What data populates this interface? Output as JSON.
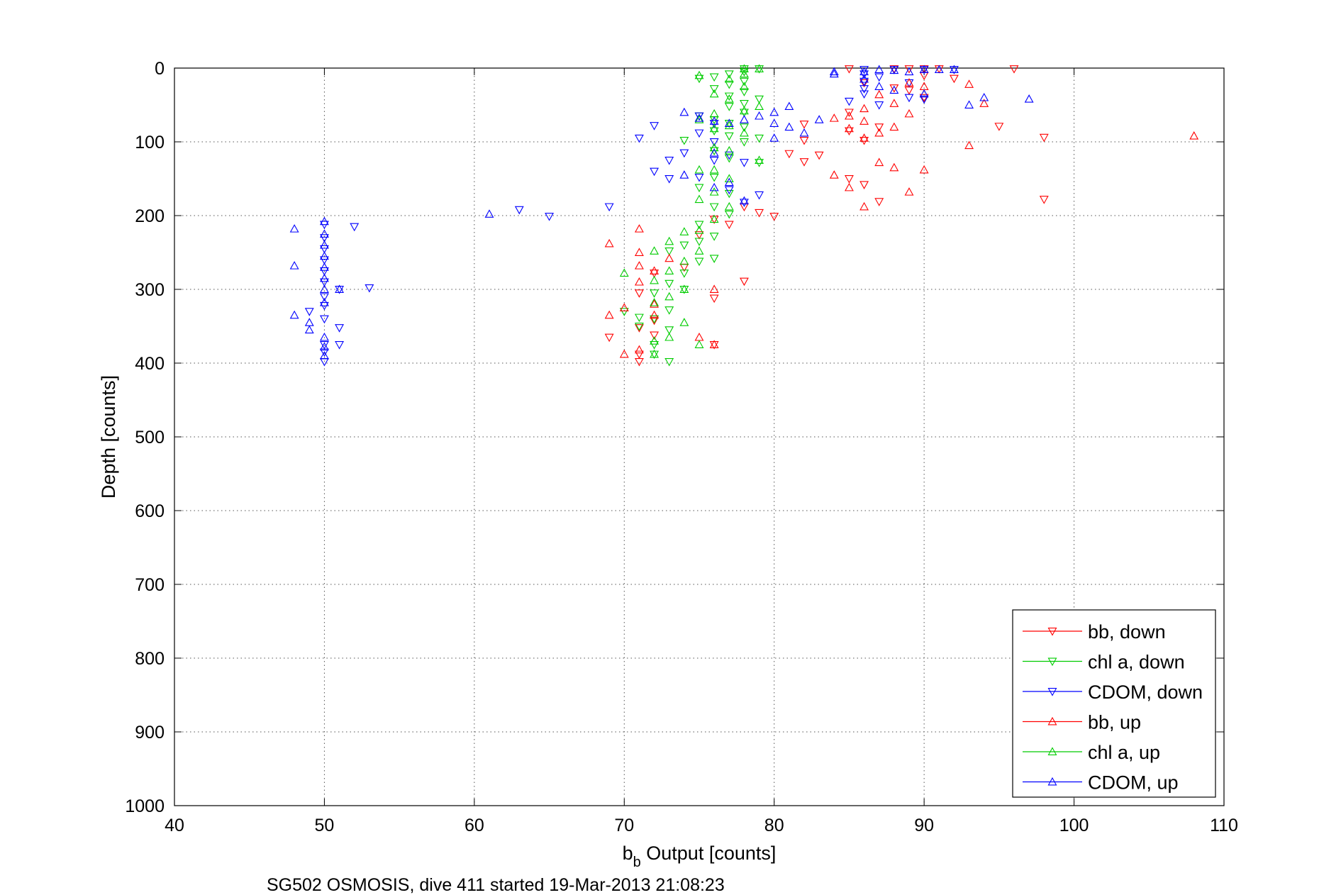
{
  "chart_data": {
    "type": "scatter",
    "xlabel_main": "b",
    "xlabel_sub": "b",
    "xlabel_rest": " Output [counts]",
    "ylabel": "Depth [counts]",
    "caption": "SG502 OSMOSIS, dive 411 started 19-Mar-2013 21:08:23",
    "xlim": [
      40,
      110
    ],
    "ylim": [
      0,
      1000
    ],
    "y_reversed": true,
    "grid": true,
    "grid_style": "dotted",
    "legend_position": "bottom-right",
    "x_ticks": [
      "40",
      "50",
      "60",
      "70",
      "80",
      "90",
      "100",
      "110"
    ],
    "y_ticks": [
      "0",
      "100",
      "200",
      "300",
      "400",
      "500",
      "600",
      "700",
      "800",
      "900",
      "1000"
    ],
    "series": [
      {
        "name": "bb, down",
        "color": "#ff0000",
        "marker": "triangle-down",
        "points": [
          [
            85,
            1
          ],
          [
            88,
            1
          ],
          [
            89,
            1
          ],
          [
            90,
            1
          ],
          [
            91,
            1
          ],
          [
            96,
            1
          ],
          [
            90,
            10
          ],
          [
            92,
            14
          ],
          [
            86,
            20
          ],
          [
            88,
            27
          ],
          [
            89,
            30
          ],
          [
            90,
            40
          ],
          [
            85,
            60
          ],
          [
            82,
            76
          ],
          [
            87,
            80
          ],
          [
            85,
            85
          ],
          [
            86,
            98
          ],
          [
            95,
            79
          ],
          [
            98,
            94
          ],
          [
            82,
            98
          ],
          [
            83,
            118
          ],
          [
            81,
            116
          ],
          [
            82,
            127
          ],
          [
            85,
            150
          ],
          [
            86,
            158
          ],
          [
            87,
            181
          ],
          [
            98,
            178
          ],
          [
            79,
            196
          ],
          [
            80,
            201
          ],
          [
            78,
            188
          ],
          [
            77,
            212
          ],
          [
            76,
            205
          ],
          [
            75,
            226
          ],
          [
            74,
            270
          ],
          [
            78,
            289
          ],
          [
            76,
            312
          ],
          [
            76,
            375
          ],
          [
            72,
            278
          ],
          [
            71,
            305
          ],
          [
            71,
            352
          ],
          [
            69,
            365
          ],
          [
            71,
            388
          ],
          [
            71,
            398
          ],
          [
            72,
            342
          ],
          [
            72,
            362
          ]
        ]
      },
      {
        "name": "chl a, down",
        "color": "#00cc00",
        "marker": "triangle-down",
        "points": [
          [
            78,
            1
          ],
          [
            79,
            1
          ],
          [
            78,
            5
          ],
          [
            77,
            8
          ],
          [
            76,
            12
          ],
          [
            75,
            14
          ],
          [
            78,
            18
          ],
          [
            77,
            22
          ],
          [
            76,
            28
          ],
          [
            78,
            32
          ],
          [
            77,
            38
          ],
          [
            79,
            42
          ],
          [
            78,
            48
          ],
          [
            77,
            52
          ],
          [
            78,
            60
          ],
          [
            75,
            65
          ],
          [
            76,
            70
          ],
          [
            77,
            75
          ],
          [
            78,
            80
          ],
          [
            76,
            85
          ],
          [
            77,
            92
          ],
          [
            79,
            95
          ],
          [
            74,
            98
          ],
          [
            78,
            100
          ],
          [
            76,
            112
          ],
          [
            77,
            122
          ],
          [
            79,
            128
          ],
          [
            76,
            148
          ],
          [
            75,
            162
          ],
          [
            77,
            170
          ],
          [
            76,
            188
          ],
          [
            77,
            198
          ],
          [
            75,
            212
          ],
          [
            76,
            228
          ],
          [
            75,
            235
          ],
          [
            74,
            240
          ],
          [
            73,
            248
          ],
          [
            75,
            262
          ],
          [
            76,
            258
          ],
          [
            74,
            278
          ],
          [
            73,
            292
          ],
          [
            74,
            300
          ],
          [
            72,
            305
          ],
          [
            73,
            328
          ],
          [
            72,
            340
          ],
          [
            73,
            355
          ],
          [
            71,
            350
          ],
          [
            72,
            375
          ],
          [
            73,
            398
          ],
          [
            72,
            388
          ],
          [
            70,
            330
          ],
          [
            71,
            338
          ]
        ]
      },
      {
        "name": "CDOM, down",
        "color": "#0000ff",
        "marker": "triangle-down",
        "points": [
          [
            86,
            2
          ],
          [
            88,
            2
          ],
          [
            90,
            2
          ],
          [
            92,
            2
          ],
          [
            86,
            8
          ],
          [
            87,
            12
          ],
          [
            86,
            18
          ],
          [
            89,
            20
          ],
          [
            86,
            28
          ],
          [
            86,
            35
          ],
          [
            85,
            45
          ],
          [
            87,
            50
          ],
          [
            89,
            40
          ],
          [
            90,
            42
          ],
          [
            75,
            65
          ],
          [
            76,
            75
          ],
          [
            75,
            88
          ],
          [
            76,
            100
          ],
          [
            74,
            115
          ],
          [
            73,
            125
          ],
          [
            73,
            150
          ],
          [
            76,
            125
          ],
          [
            77,
            118
          ],
          [
            78,
            128
          ],
          [
            75,
            148
          ],
          [
            72,
            140
          ],
          [
            71,
            95
          ],
          [
            72,
            78
          ],
          [
            79,
            172
          ],
          [
            78,
            182
          ],
          [
            77,
            165
          ],
          [
            69,
            188
          ],
          [
            63,
            192
          ],
          [
            65,
            201
          ],
          [
            50,
            212
          ],
          [
            52,
            215
          ],
          [
            50,
            230
          ],
          [
            50,
            245
          ],
          [
            50,
            260
          ],
          [
            50,
            275
          ],
          [
            50,
            290
          ],
          [
            51,
            300
          ],
          [
            53,
            298
          ],
          [
            50,
            310
          ],
          [
            50,
            322
          ],
          [
            50,
            340
          ],
          [
            51,
            352
          ],
          [
            49,
            330
          ],
          [
            50,
            375
          ],
          [
            51,
            375
          ],
          [
            50,
            385
          ],
          [
            50,
            398
          ]
        ]
      },
      {
        "name": "bb, up",
        "color": "#ff0000",
        "marker": "triangle-up",
        "points": [
          [
            89,
            20
          ],
          [
            90,
            25
          ],
          [
            93,
            22
          ],
          [
            94,
            48
          ],
          [
            87,
            36
          ],
          [
            88,
            48
          ],
          [
            86,
            55
          ],
          [
            89,
            62
          ],
          [
            85,
            65
          ],
          [
            84,
            68
          ],
          [
            86,
            72
          ],
          [
            88,
            80
          ],
          [
            85,
            82
          ],
          [
            87,
            88
          ],
          [
            86,
            95
          ],
          [
            93,
            105
          ],
          [
            108,
            92
          ],
          [
            87,
            128
          ],
          [
            88,
            135
          ],
          [
            90,
            138
          ],
          [
            89,
            168
          ],
          [
            86,
            188
          ],
          [
            84,
            145
          ],
          [
            85,
            162
          ],
          [
            69,
            238
          ],
          [
            71,
            218
          ],
          [
            71,
            250
          ],
          [
            71,
            268
          ],
          [
            72,
            275
          ],
          [
            71,
            290
          ],
          [
            73,
            258
          ],
          [
            70,
            325
          ],
          [
            69,
            335
          ],
          [
            71,
            382
          ],
          [
            70,
            388
          ],
          [
            76,
            300
          ],
          [
            75,
            365
          ],
          [
            76,
            375
          ],
          [
            72,
            320
          ],
          [
            72,
            335
          ]
        ]
      },
      {
        "name": "chl a, up",
        "color": "#00cc00",
        "marker": "triangle-up",
        "points": [
          [
            78,
            1
          ],
          [
            79,
            1
          ],
          [
            78,
            8
          ],
          [
            75,
            10
          ],
          [
            77,
            15
          ],
          [
            78,
            25
          ],
          [
            76,
            35
          ],
          [
            77,
            42
          ],
          [
            79,
            52
          ],
          [
            78,
            58
          ],
          [
            76,
            62
          ],
          [
            75,
            70
          ],
          [
            77,
            78
          ],
          [
            76,
            82
          ],
          [
            78,
            88
          ],
          [
            76,
            108
          ],
          [
            77,
            112
          ],
          [
            79,
            125
          ],
          [
            76,
            138
          ],
          [
            75,
            138
          ],
          [
            77,
            150
          ],
          [
            76,
            168
          ],
          [
            75,
            178
          ],
          [
            77,
            188
          ],
          [
            76,
            205
          ],
          [
            75,
            220
          ],
          [
            74,
            222
          ],
          [
            73,
            235
          ],
          [
            72,
            248
          ],
          [
            75,
            248
          ],
          [
            74,
            262
          ],
          [
            73,
            275
          ],
          [
            72,
            288
          ],
          [
            74,
            300
          ],
          [
            70,
            278
          ],
          [
            73,
            310
          ],
          [
            72,
            318
          ],
          [
            74,
            345
          ],
          [
            73,
            365
          ],
          [
            72,
            370
          ],
          [
            75,
            375
          ],
          [
            72,
            388
          ]
        ]
      },
      {
        "name": "CDOM, up",
        "color": "#0000ff",
        "marker": "triangle-up",
        "points": [
          [
            84,
            5
          ],
          [
            86,
            5
          ],
          [
            87,
            2
          ],
          [
            88,
            3
          ],
          [
            89,
            5
          ],
          [
            90,
            2
          ],
          [
            91,
            2
          ],
          [
            92,
            2
          ],
          [
            84,
            8
          ],
          [
            86,
            15
          ],
          [
            87,
            25
          ],
          [
            88,
            30
          ],
          [
            90,
            35
          ],
          [
            93,
            50
          ],
          [
            94,
            40
          ],
          [
            97,
            42
          ],
          [
            81,
            52
          ],
          [
            80,
            60
          ],
          [
            79,
            65
          ],
          [
            78,
            70
          ],
          [
            80,
            75
          ],
          [
            81,
            80
          ],
          [
            82,
            88
          ],
          [
            80,
            95
          ],
          [
            83,
            70
          ],
          [
            74,
            60
          ],
          [
            75,
            68
          ],
          [
            76,
            72
          ],
          [
            77,
            75
          ],
          [
            76,
            115
          ],
          [
            77,
            155
          ],
          [
            76,
            162
          ],
          [
            78,
            180
          ],
          [
            74,
            145
          ],
          [
            61,
            198
          ],
          [
            50,
            208
          ],
          [
            48,
            218
          ],
          [
            50,
            225
          ],
          [
            50,
            240
          ],
          [
            50,
            255
          ],
          [
            50,
            270
          ],
          [
            48,
            268
          ],
          [
            50,
            285
          ],
          [
            50,
            300
          ],
          [
            51,
            300
          ],
          [
            50,
            318
          ],
          [
            48,
            335
          ],
          [
            49,
            345
          ],
          [
            49,
            355
          ],
          [
            50,
            365
          ],
          [
            50,
            378
          ],
          [
            50,
            390
          ]
        ]
      }
    ]
  }
}
